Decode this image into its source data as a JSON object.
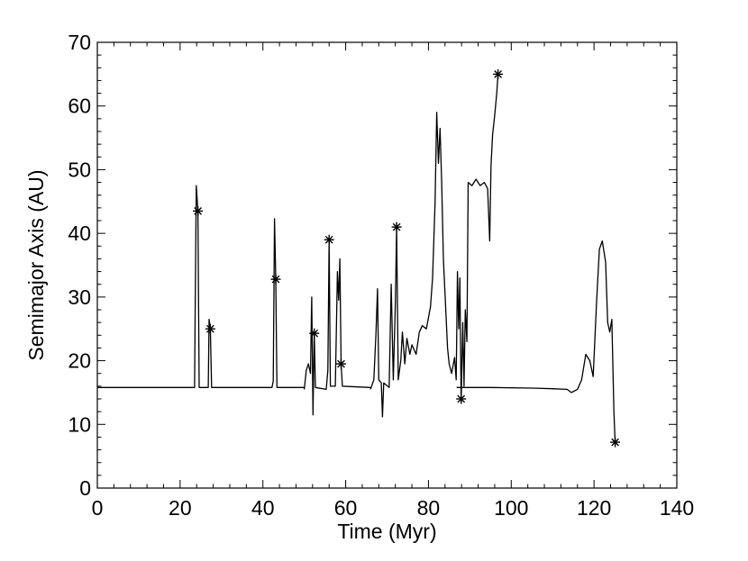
{
  "chart_data": {
    "type": "line",
    "title": "",
    "xlabel": "Time (Myr)",
    "ylabel": "Semimajor Axis (AU)",
    "xlim": [
      0,
      140
    ],
    "ylim": [
      0,
      70
    ],
    "xticks": [
      0,
      20,
      40,
      60,
      80,
      100,
      120,
      140
    ],
    "xtick_labels": [
      "0",
      "20",
      "40",
      "60",
      "80",
      "100",
      "120",
      "140"
    ],
    "yticks": [
      0,
      10,
      20,
      30,
      40,
      50,
      60,
      70
    ],
    "ytick_labels": [
      "0",
      "10",
      "20",
      "30",
      "40",
      "50",
      "60",
      "70"
    ],
    "grid": false,
    "legend": "none",
    "line_color": "#000000",
    "series": [
      {
        "values": [
          [
            0,
            15.8
          ],
          [
            10,
            15.8
          ],
          [
            20,
            15.8
          ],
          [
            23.5,
            15.8
          ],
          [
            23.6,
            25
          ],
          [
            23.9,
            47.5
          ],
          [
            24.3,
            43.5
          ],
          [
            24.6,
            15.8
          ],
          [
            26.8,
            15.8
          ],
          [
            27.0,
            26.5
          ],
          [
            27.3,
            25
          ],
          [
            27.6,
            15.8
          ],
          [
            42.2,
            15.8
          ],
          [
            42.5,
            16.8
          ],
          [
            42.8,
            42.3
          ],
          [
            43.1,
            32.8
          ],
          [
            43.4,
            15.8
          ],
          [
            50,
            15.8
          ]
        ]
      },
      {
        "values": [
          [
            50,
            15.5
          ],
          [
            50.5,
            18.5
          ],
          [
            51,
            19.5
          ],
          [
            51.5,
            18
          ],
          [
            51.8,
            30
          ],
          [
            52.1,
            11.5
          ],
          [
            52.4,
            24.5
          ],
          [
            52.7,
            15.8
          ],
          [
            55.3,
            15.5
          ],
          [
            55.7,
            18.5
          ],
          [
            56,
            39
          ],
          [
            56.3,
            16
          ],
          [
            57.5,
            16
          ],
          [
            58,
            34
          ],
          [
            58.3,
            29.5
          ],
          [
            58.6,
            36
          ],
          [
            58.9,
            19.5
          ],
          [
            59.2,
            16
          ],
          [
            66,
            15.8
          ]
        ]
      },
      {
        "values": [
          [
            66,
            15.5
          ],
          [
            66.8,
            17
          ],
          [
            67.3,
            24
          ],
          [
            67.7,
            31.3
          ],
          [
            68,
            17
          ],
          [
            68.6,
            16.5
          ],
          [
            68.9,
            11.2
          ],
          [
            69.2,
            16.5
          ],
          [
            70.5,
            15.8
          ],
          [
            71,
            32
          ],
          [
            71.5,
            17
          ],
          [
            72,
            29
          ],
          [
            72.3,
            41
          ],
          [
            72.7,
            17
          ],
          [
            73.3,
            20
          ],
          [
            73.7,
            24.5
          ],
          [
            74.3,
            19.5
          ],
          [
            74.8,
            23.5
          ],
          [
            75.5,
            21
          ],
          [
            76,
            22.5
          ],
          [
            77,
            21
          ],
          [
            77.8,
            24.5
          ],
          [
            78.5,
            25.5
          ],
          [
            79.5,
            25
          ],
          [
            80.5,
            28.5
          ],
          [
            81,
            33
          ],
          [
            81.6,
            45
          ],
          [
            82,
            59
          ],
          [
            82.4,
            51
          ],
          [
            82.8,
            56.5
          ],
          [
            83.2,
            48
          ],
          [
            83.6,
            36
          ],
          [
            84.1,
            29
          ],
          [
            84.6,
            22
          ],
          [
            85,
            19.5
          ],
          [
            85.6,
            18
          ],
          [
            86.3,
            20.5
          ],
          [
            86.7,
            17
          ],
          [
            87,
            34
          ],
          [
            87.3,
            25
          ],
          [
            87.6,
            33
          ],
          [
            87.9,
            13.5
          ],
          [
            88.3,
            26
          ],
          [
            88.6,
            16
          ],
          [
            88.9,
            28
          ],
          [
            89.3,
            23
          ],
          [
            89.6,
            48
          ],
          [
            90.5,
            47.5
          ],
          [
            91.5,
            48.5
          ],
          [
            92.5,
            47.5
          ],
          [
            93.5,
            48
          ],
          [
            94.3,
            47
          ],
          [
            94.8,
            38.8
          ],
          [
            95.1,
            50.5
          ],
          [
            95.5,
            55.5
          ],
          [
            96,
            58.5
          ],
          [
            96.5,
            62
          ],
          [
            96.8,
            65
          ]
        ]
      },
      {
        "values": [
          [
            86.8,
            15.8
          ],
          [
            95,
            15.8
          ],
          [
            105,
            15.7
          ],
          [
            110,
            15.6
          ],
          [
            113.5,
            15.5
          ],
          [
            114.5,
            15
          ],
          [
            116,
            15.5
          ],
          [
            117,
            17
          ],
          [
            118,
            21
          ],
          [
            119,
            20
          ],
          [
            119.8,
            17.5
          ],
          [
            120.6,
            29
          ],
          [
            121.3,
            37.5
          ],
          [
            122,
            38.8
          ],
          [
            122.8,
            35.5
          ],
          [
            123.3,
            26
          ],
          [
            123.8,
            24.5
          ],
          [
            124.3,
            26.5
          ],
          [
            124.8,
            12
          ],
          [
            125.1,
            7
          ]
        ]
      }
    ],
    "markers": [
      {
        "x": 24.3,
        "y": 43.5
      },
      {
        "x": 27.3,
        "y": 25
      },
      {
        "x": 43.1,
        "y": 32.8
      },
      {
        "x": 52.4,
        "y": 24.3
      },
      {
        "x": 56.0,
        "y": 39
      },
      {
        "x": 58.9,
        "y": 19.5
      },
      {
        "x": 72.3,
        "y": 41
      },
      {
        "x": 87.9,
        "y": 14
      },
      {
        "x": 96.8,
        "y": 65
      },
      {
        "x": 125.1,
        "y": 7.2
      }
    ],
    "marker_symbol": "asterisk"
  }
}
